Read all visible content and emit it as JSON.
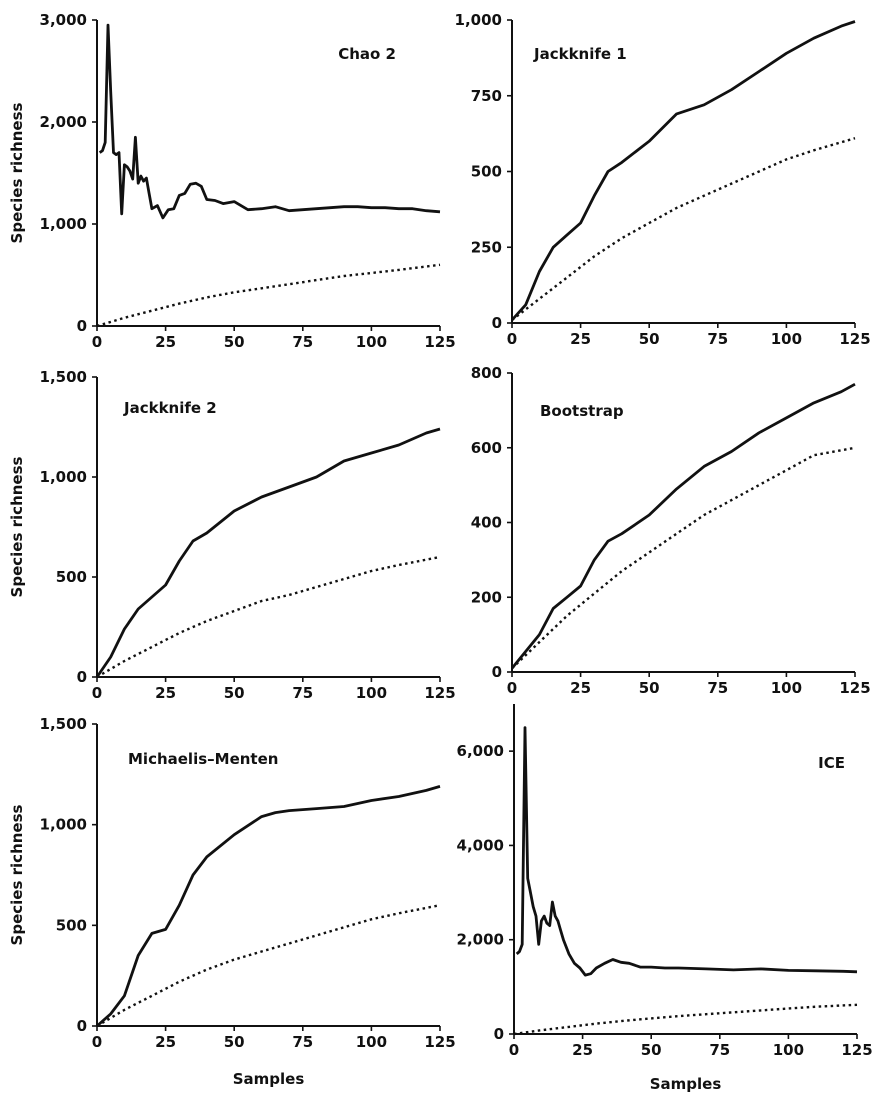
{
  "figure": {
    "y_axis_title": "Species richness",
    "x_axis_title": "Samples"
  },
  "chart_data": [
    {
      "type": "line",
      "title": "Chao 2",
      "xlabel": "",
      "ylabel": "Species richness",
      "xlim": [
        0,
        125
      ],
      "ylim": [
        0,
        3000
      ],
      "xticks": [
        "0",
        "25",
        "50",
        "75",
        "100",
        "125"
      ],
      "yticks": [
        "0",
        "1,000",
        "2,000",
        "3,000"
      ],
      "xtick_values": [
        0,
        25,
        50,
        75,
        100,
        125
      ],
      "ytick_values": [
        0,
        1000,
        2000,
        3000
      ],
      "series": [
        {
          "style": "solid",
          "x": [
            1,
            2,
            3,
            4,
            5,
            6,
            7,
            8,
            9,
            10,
            11,
            12,
            13,
            14,
            15,
            16,
            17,
            18,
            19,
            20,
            22,
            24,
            26,
            28,
            30,
            32,
            34,
            36,
            38,
            40,
            43,
            46,
            50,
            55,
            60,
            65,
            70,
            75,
            80,
            85,
            90,
            95,
            100,
            105,
            110,
            115,
            120,
            125
          ],
          "y": [
            1700,
            1720,
            1800,
            2950,
            2300,
            1700,
            1680,
            1700,
            1100,
            1580,
            1560,
            1520,
            1440,
            1850,
            1400,
            1470,
            1420,
            1450,
            1300,
            1150,
            1180,
            1060,
            1140,
            1150,
            1280,
            1300,
            1390,
            1400,
            1370,
            1240,
            1230,
            1200,
            1220,
            1140,
            1150,
            1170,
            1130,
            1140,
            1150,
            1160,
            1170,
            1170,
            1160,
            1160,
            1150,
            1150,
            1130,
            1120
          ]
        },
        {
          "style": "dotted",
          "x": [
            0,
            10,
            20,
            30,
            40,
            50,
            60,
            70,
            80,
            90,
            100,
            110,
            125
          ],
          "y": [
            0,
            80,
            150,
            220,
            280,
            330,
            370,
            410,
            450,
            490,
            520,
            550,
            600
          ]
        }
      ]
    },
    {
      "type": "line",
      "title": "Jackknife 1",
      "xlabel": "",
      "ylabel": "",
      "xlim": [
        0,
        125
      ],
      "ylim": [
        0,
        1000
      ],
      "xticks": [
        "0",
        "25",
        "50",
        "75",
        "100",
        "125"
      ],
      "yticks": [
        "0",
        "250",
        "500",
        "750",
        "1,000"
      ],
      "xtick_values": [
        0,
        25,
        50,
        75,
        100,
        125
      ],
      "ytick_values": [
        0,
        250,
        500,
        750,
        1000
      ],
      "series": [
        {
          "style": "solid",
          "x": [
            0,
            5,
            10,
            15,
            20,
            25,
            30,
            35,
            40,
            50,
            60,
            70,
            80,
            90,
            100,
            110,
            120,
            125
          ],
          "y": [
            10,
            60,
            170,
            250,
            290,
            330,
            420,
            500,
            530,
            600,
            690,
            720,
            770,
            830,
            890,
            940,
            980,
            995
          ]
        },
        {
          "style": "dotted",
          "x": [
            0,
            10,
            20,
            30,
            40,
            50,
            60,
            70,
            80,
            90,
            100,
            110,
            125
          ],
          "y": [
            10,
            80,
            150,
            220,
            280,
            330,
            380,
            420,
            460,
            500,
            540,
            570,
            610
          ]
        }
      ]
    },
    {
      "type": "line",
      "title": "Jackknife 2",
      "xlabel": "",
      "ylabel": "Species richness",
      "xlim": [
        0,
        125
      ],
      "ylim": [
        0,
        1500
      ],
      "xticks": [
        "0",
        "25",
        "50",
        "75",
        "100",
        "125"
      ],
      "yticks": [
        "0",
        "500",
        "1,000",
        "1,500"
      ],
      "xtick_values": [
        0,
        25,
        50,
        75,
        100,
        125
      ],
      "ytick_values": [
        0,
        500,
        1000,
        1500
      ],
      "series": [
        {
          "style": "solid",
          "x": [
            0,
            5,
            10,
            15,
            20,
            25,
            30,
            35,
            40,
            50,
            60,
            70,
            80,
            90,
            100,
            110,
            120,
            125
          ],
          "y": [
            0,
            100,
            240,
            340,
            400,
            460,
            580,
            680,
            720,
            830,
            900,
            950,
            1000,
            1080,
            1120,
            1160,
            1220,
            1240
          ]
        },
        {
          "style": "dotted",
          "x": [
            0,
            10,
            20,
            30,
            40,
            50,
            60,
            70,
            80,
            90,
            100,
            110,
            125
          ],
          "y": [
            0,
            80,
            150,
            220,
            280,
            330,
            380,
            410,
            450,
            490,
            530,
            560,
            600
          ]
        }
      ]
    },
    {
      "type": "line",
      "title": "Bootstrap",
      "xlabel": "",
      "ylabel": "",
      "xlim": [
        0,
        125
      ],
      "ylim": [
        0,
        800
      ],
      "xticks": [
        "0",
        "25",
        "50",
        "75",
        "100",
        "125"
      ],
      "yticks": [
        "0",
        "200",
        "400",
        "600",
        "800"
      ],
      "xtick_values": [
        0,
        25,
        50,
        75,
        100,
        125
      ],
      "ytick_values": [
        0,
        200,
        400,
        600,
        800
      ],
      "series": [
        {
          "style": "solid",
          "x": [
            0,
            10,
            15,
            20,
            25,
            30,
            35,
            40,
            50,
            60,
            70,
            80,
            90,
            100,
            110,
            120,
            125
          ],
          "y": [
            10,
            100,
            170,
            200,
            230,
            300,
            350,
            370,
            420,
            490,
            550,
            590,
            640,
            680,
            720,
            750,
            770
          ]
        },
        {
          "style": "dotted",
          "x": [
            0,
            10,
            20,
            30,
            40,
            50,
            60,
            70,
            80,
            90,
            100,
            110,
            125
          ],
          "y": [
            10,
            80,
            150,
            210,
            270,
            320,
            370,
            420,
            460,
            500,
            540,
            580,
            600
          ]
        }
      ]
    },
    {
      "type": "line",
      "title": "Michaelis–Menten",
      "xlabel": "Samples",
      "ylabel": "Species richness",
      "xlim": [
        0,
        125
      ],
      "ylim": [
        0,
        1500
      ],
      "xticks": [
        "0",
        "25",
        "50",
        "75",
        "100",
        "125"
      ],
      "yticks": [
        "0",
        "500",
        "1,000",
        "1,500"
      ],
      "xtick_values": [
        0,
        25,
        50,
        75,
        100,
        125
      ],
      "ytick_values": [
        0,
        500,
        1000,
        1500
      ],
      "series": [
        {
          "style": "solid",
          "x": [
            0,
            5,
            10,
            15,
            20,
            25,
            30,
            35,
            40,
            50,
            60,
            65,
            70,
            80,
            90,
            100,
            110,
            120,
            125
          ],
          "y": [
            0,
            60,
            150,
            350,
            460,
            480,
            600,
            750,
            840,
            950,
            1040,
            1060,
            1070,
            1080,
            1090,
            1120,
            1140,
            1170,
            1190
          ]
        },
        {
          "style": "dotted",
          "x": [
            0,
            10,
            20,
            30,
            40,
            50,
            60,
            70,
            80,
            90,
            100,
            110,
            125
          ],
          "y": [
            0,
            80,
            150,
            220,
            280,
            330,
            370,
            410,
            450,
            490,
            530,
            560,
            600
          ]
        }
      ]
    },
    {
      "type": "line",
      "title": "ICE",
      "xlabel": "Samples",
      "ylabel": "",
      "xlim": [
        0,
        125
      ],
      "ylim": [
        0,
        7000
      ],
      "xticks": [
        "0",
        "25",
        "50",
        "75",
        "100",
        "125"
      ],
      "yticks": [
        "0",
        "2,000",
        "4,000",
        "6,000"
      ],
      "xtick_values": [
        0,
        25,
        50,
        75,
        100,
        125
      ],
      "ytick_values": [
        0,
        2000,
        4000,
        6000
      ],
      "series": [
        {
          "style": "solid",
          "x": [
            1,
            2,
            3,
            4,
            5,
            6,
            7,
            8,
            9,
            10,
            11,
            12,
            13,
            14,
            15,
            16,
            17,
            18,
            20,
            22,
            24,
            26,
            28,
            30,
            33,
            36,
            39,
            42,
            46,
            50,
            55,
            60,
            70,
            80,
            90,
            100,
            110,
            120,
            125
          ],
          "y": [
            1700,
            1750,
            1900,
            6500,
            3300,
            3000,
            2700,
            2500,
            1900,
            2400,
            2500,
            2350,
            2300,
            2800,
            2500,
            2400,
            2200,
            2000,
            1700,
            1500,
            1400,
            1250,
            1280,
            1400,
            1500,
            1580,
            1520,
            1500,
            1420,
            1420,
            1400,
            1400,
            1380,
            1360,
            1380,
            1350,
            1340,
            1330,
            1320
          ]
        },
        {
          "style": "dotted",
          "x": [
            0,
            10,
            20,
            30,
            40,
            50,
            60,
            70,
            80,
            90,
            100,
            110,
            125
          ],
          "y": [
            0,
            80,
            150,
            220,
            280,
            330,
            380,
            420,
            460,
            500,
            540,
            580,
            620
          ]
        }
      ]
    }
  ]
}
